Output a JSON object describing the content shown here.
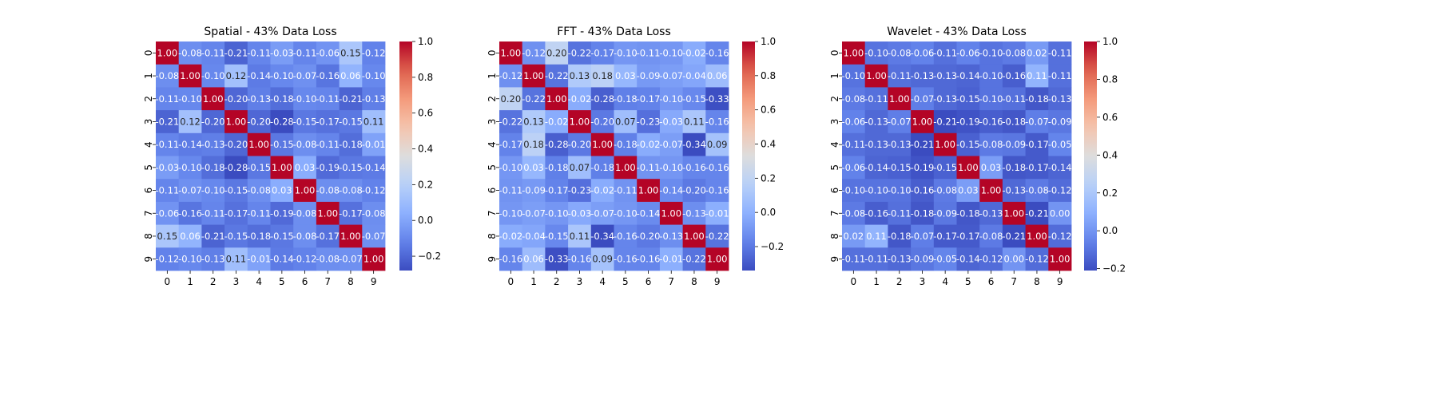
{
  "chart_data": [
    {
      "type": "heatmap",
      "title": "Spatial - 43% Data Loss",
      "x_ticks": [
        "0",
        "1",
        "2",
        "3",
        "4",
        "5",
        "6",
        "7",
        "8",
        "9"
      ],
      "y_ticks": [
        "0",
        "1",
        "2",
        "3",
        "4",
        "5",
        "6",
        "7",
        "8",
        "9"
      ],
      "colormap": "coolwarm",
      "vmin": -0.28,
      "vmax": 1.0,
      "colorbar_ticks": [
        "−0.2",
        "0.0",
        "0.2",
        "0.4",
        "0.6",
        "0.8",
        "1.0"
      ],
      "colorbar_values": [
        -0.2,
        0.0,
        0.2,
        0.4,
        0.6,
        0.8,
        1.0
      ],
      "matrix": [
        [
          1.0,
          -0.08,
          -0.11,
          -0.21,
          -0.11,
          -0.03,
          -0.11,
          -0.06,
          0.15,
          -0.12
        ],
        [
          -0.08,
          1.0,
          -0.1,
          0.12,
          -0.14,
          -0.1,
          -0.07,
          -0.16,
          0.06,
          -0.1
        ],
        [
          -0.11,
          -0.1,
          1.0,
          -0.2,
          -0.13,
          -0.18,
          -0.1,
          -0.11,
          -0.21,
          -0.13
        ],
        [
          -0.21,
          0.12,
          -0.2,
          1.0,
          -0.2,
          -0.28,
          -0.15,
          -0.17,
          -0.15,
          0.11
        ],
        [
          -0.11,
          -0.14,
          -0.13,
          -0.2,
          1.0,
          -0.15,
          -0.08,
          -0.11,
          -0.18,
          -0.01
        ],
        [
          -0.03,
          -0.1,
          -0.18,
          -0.28,
          -0.15,
          1.0,
          0.03,
          -0.19,
          -0.15,
          -0.14
        ],
        [
          -0.11,
          -0.07,
          -0.1,
          -0.15,
          -0.08,
          0.03,
          1.0,
          -0.08,
          -0.08,
          -0.12
        ],
        [
          -0.06,
          -0.16,
          -0.11,
          -0.17,
          -0.11,
          -0.19,
          -0.08,
          1.0,
          -0.17,
          -0.08
        ],
        [
          0.15,
          0.06,
          -0.21,
          -0.15,
          -0.18,
          -0.15,
          -0.08,
          -0.17,
          1.0,
          -0.07
        ],
        [
          -0.12,
          -0.1,
          -0.13,
          0.11,
          -0.01,
          -0.14,
          -0.12,
          -0.08,
          -0.07,
          1.0
        ]
      ]
    },
    {
      "type": "heatmap",
      "title": "FFT - 43% Data Loss",
      "x_ticks": [
        "0",
        "1",
        "2",
        "3",
        "4",
        "5",
        "6",
        "7",
        "8",
        "9"
      ],
      "y_ticks": [
        "0",
        "1",
        "2",
        "3",
        "4",
        "5",
        "6",
        "7",
        "8",
        "9"
      ],
      "colormap": "coolwarm",
      "vmin": -0.34,
      "vmax": 1.0,
      "colorbar_ticks": [
        "−0.2",
        "0.0",
        "0.2",
        "0.4",
        "0.6",
        "0.8",
        "1.0"
      ],
      "colorbar_values": [
        -0.2,
        0.0,
        0.2,
        0.4,
        0.6,
        0.8,
        1.0
      ],
      "matrix": [
        [
          1.0,
          -0.12,
          0.2,
          -0.22,
          -0.17,
          -0.1,
          -0.11,
          -0.1,
          -0.02,
          -0.16
        ],
        [
          -0.12,
          1.0,
          -0.22,
          0.13,
          0.18,
          0.03,
          -0.09,
          -0.07,
          -0.04,
          0.06
        ],
        [
          0.2,
          -0.22,
          1.0,
          -0.02,
          -0.28,
          -0.18,
          -0.17,
          -0.1,
          -0.15,
          -0.33
        ],
        [
          -0.22,
          0.13,
          -0.02,
          1.0,
          -0.2,
          0.07,
          -0.23,
          -0.03,
          0.11,
          -0.16
        ],
        [
          -0.17,
          0.18,
          -0.28,
          -0.2,
          1.0,
          -0.18,
          -0.02,
          -0.07,
          -0.34,
          0.09
        ],
        [
          -0.1,
          0.03,
          -0.18,
          0.07,
          -0.18,
          1.0,
          -0.11,
          -0.1,
          -0.16,
          -0.16
        ],
        [
          -0.11,
          -0.09,
          -0.17,
          -0.23,
          -0.02,
          -0.11,
          1.0,
          -0.14,
          -0.2,
          -0.16
        ],
        [
          -0.1,
          -0.07,
          -0.1,
          -0.03,
          -0.07,
          -0.1,
          -0.14,
          1.0,
          -0.13,
          -0.01
        ],
        [
          -0.02,
          -0.04,
          -0.15,
          0.11,
          -0.34,
          -0.16,
          -0.2,
          -0.13,
          1.0,
          -0.22
        ],
        [
          -0.16,
          0.06,
          -0.33,
          -0.16,
          0.09,
          -0.16,
          -0.16,
          -0.01,
          -0.22,
          1.0
        ]
      ]
    },
    {
      "type": "heatmap",
      "title": "Wavelet - 43% Data Loss",
      "x_ticks": [
        "0",
        "1",
        "2",
        "3",
        "4",
        "5",
        "6",
        "7",
        "8",
        "9"
      ],
      "y_ticks": [
        "0",
        "1",
        "2",
        "3",
        "4",
        "5",
        "6",
        "7",
        "8",
        "9"
      ],
      "colormap": "coolwarm",
      "vmin": -0.21,
      "vmax": 1.0,
      "colorbar_ticks": [
        "−0.2",
        "0.0",
        "0.2",
        "0.4",
        "0.6",
        "0.8",
        "1.0"
      ],
      "colorbar_values": [
        -0.2,
        0.0,
        0.2,
        0.4,
        0.6,
        0.8,
        1.0
      ],
      "matrix": [
        [
          1.0,
          -0.1,
          -0.08,
          -0.06,
          -0.11,
          -0.06,
          -0.1,
          -0.08,
          0.02,
          -0.11
        ],
        [
          -0.1,
          1.0,
          -0.11,
          -0.13,
          -0.13,
          -0.14,
          -0.1,
          -0.16,
          0.11,
          -0.11
        ],
        [
          -0.08,
          -0.11,
          1.0,
          -0.07,
          -0.13,
          -0.15,
          -0.1,
          -0.11,
          -0.18,
          -0.13
        ],
        [
          -0.06,
          -0.13,
          -0.07,
          1.0,
          -0.21,
          -0.19,
          -0.16,
          -0.18,
          -0.07,
          -0.09
        ],
        [
          -0.11,
          -0.13,
          -0.13,
          -0.21,
          1.0,
          -0.15,
          -0.08,
          -0.09,
          -0.17,
          -0.05
        ],
        [
          -0.06,
          -0.14,
          -0.15,
          -0.19,
          -0.15,
          1.0,
          0.03,
          -0.18,
          -0.17,
          -0.14
        ],
        [
          -0.1,
          -0.1,
          -0.1,
          -0.16,
          -0.08,
          0.03,
          1.0,
          -0.13,
          -0.08,
          -0.12
        ],
        [
          -0.08,
          -0.16,
          -0.11,
          -0.18,
          -0.09,
          -0.18,
          -0.13,
          1.0,
          -0.21,
          -0.0
        ],
        [
          0.02,
          0.11,
          -0.18,
          -0.07,
          -0.17,
          -0.17,
          -0.08,
          -0.21,
          1.0,
          -0.12
        ],
        [
          -0.11,
          -0.11,
          -0.13,
          -0.09,
          -0.05,
          -0.14,
          -0.12,
          -0.0,
          -0.12,
          1.0
        ]
      ]
    }
  ]
}
